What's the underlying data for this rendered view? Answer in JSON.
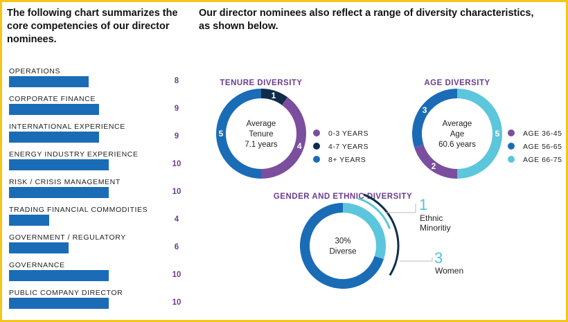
{
  "headings": {
    "left": "The following chart summarizes the core competencies of our director nominees.",
    "right": "Our director nominees also reflect a range of diversity characteristics, as shown below."
  },
  "colors": {
    "purple": "#7b4f9d",
    "navy": "#0f2d4a",
    "blue": "#1b6cb6",
    "cyan": "#5bc6dc",
    "frame": "#f5c518"
  },
  "chart_data": [
    {
      "type": "bar",
      "orientation": "horizontal",
      "categories": [
        "OPERATIONS",
        "CORPORATE FINANCE",
        "INTERNATIONAL EXPERIENCE",
        "ENERGY INDUSTRY EXPERIENCE",
        "RISK / CRISIS MANAGEMENT",
        "TRADING FINANCIAL COMMODITIES",
        "GOVERNMENT / REGULATORY",
        "GOVERNANCE",
        "PUBLIC COMPANY DIRECTOR"
      ],
      "values": [
        8,
        9,
        9,
        10,
        10,
        4,
        6,
        10,
        10
      ],
      "xlim": [
        0,
        12
      ]
    },
    {
      "type": "pie",
      "title": "TENURE DIVERSITY",
      "center_text": [
        "Average",
        "Tenure",
        "7.1 years"
      ],
      "categories": [
        "0-3 YEARS",
        "4-7 YEARS",
        "8+ YEARS"
      ],
      "values": [
        4,
        1,
        5
      ],
      "colors": [
        "#7b4f9d",
        "#0f2d4a",
        "#1b6cb6"
      ]
    },
    {
      "type": "pie",
      "title": "AGE DIVERSITY",
      "center_text": [
        "Average",
        "Age",
        "60.6 years"
      ],
      "categories": [
        "AGE 36-45",
        "AGE 56-65",
        "AGE 66-75"
      ],
      "values": [
        2,
        3,
        5
      ],
      "colors": [
        "#7b4f9d",
        "#1b6cb6",
        "#5bc6dc"
      ]
    },
    {
      "type": "pie",
      "title": "GENDER AND ETHNIC DIVERSITY",
      "center_text": [
        "30%",
        "Diverse"
      ],
      "values": [
        3,
        7
      ],
      "colors": [
        "#5bc6dc",
        "#1b6cb6"
      ],
      "annotations": [
        {
          "number": "1",
          "text": [
            "Ethnic",
            "Minoritiy"
          ]
        },
        {
          "number": "3",
          "text": [
            "Women"
          ]
        }
      ]
    }
  ]
}
